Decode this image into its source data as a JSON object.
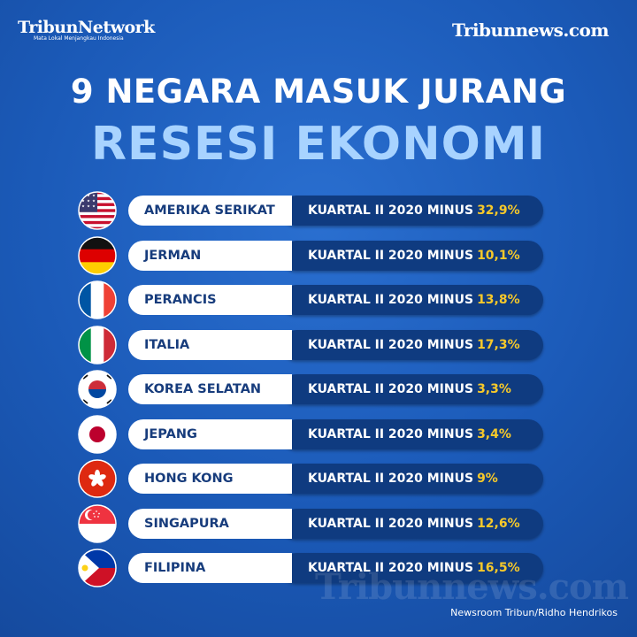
{
  "header": {
    "network": "TribunNetwork",
    "network_tagline": "Mata Lokal Menjangkau Indonesia",
    "site": "Tribunnews.com"
  },
  "title": {
    "line1": "9 NEGARA MASUK JURANG",
    "line2": "RESESI EKONOMI"
  },
  "rows": [
    {
      "country": "AMERIKA SERIKAT",
      "period": "KUARTAL II 2020 MINUS",
      "value": "32,9%"
    },
    {
      "country": "JERMAN",
      "period": "KUARTAL II 2020 MINUS",
      "value": "10,1%"
    },
    {
      "country": "PERANCIS",
      "period": "KUARTAL II 2020 MINUS",
      "value": "13,8%"
    },
    {
      "country": "ITALIA",
      "period": "KUARTAL II 2020 MINUS",
      "value": "17,3%"
    },
    {
      "country": "KOREA SELATAN",
      "period": "KUARTAL II 2020 MINUS",
      "value": "3,3%"
    },
    {
      "country": "JEPANG",
      "period": "KUARTAL II 2020 MINUS",
      "value": "3,4%"
    },
    {
      "country": "HONG KONG",
      "period": "KUARTAL II 2020 MINUS",
      "value": "9%"
    },
    {
      "country": "SINGAPURA",
      "period": "KUARTAL II 2020 MINUS",
      "value": "12,6%"
    },
    {
      "country": "FILIPINA",
      "period": "KUARTAL II 2020 MINUS",
      "value": "16,5%"
    }
  ],
  "footer": {
    "watermark": "Tribunnews.com",
    "credit": "Newsroom Tribun/Ridho Hendrikos"
  }
}
